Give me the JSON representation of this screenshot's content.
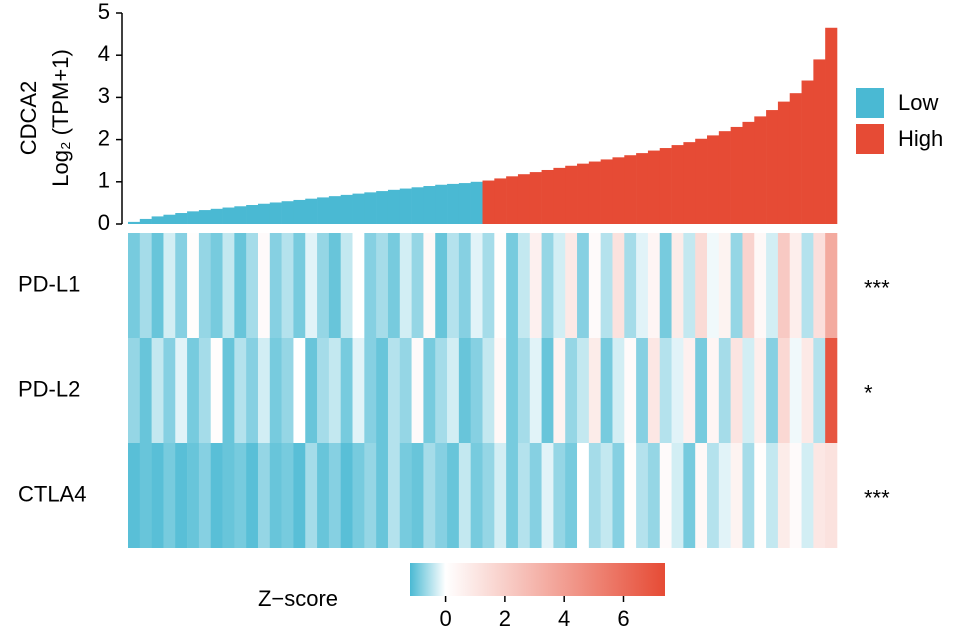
{
  "chart_data": {
    "type": "bar",
    "ylabel": [
      "CDCA2",
      "Log₂ (TPM+1)"
    ],
    "ylim": [
      0,
      5
    ],
    "yticks": [
      0,
      1,
      2,
      3,
      4,
      5
    ],
    "legend": "right",
    "series": [
      {
        "name": "Low",
        "color": "#4ab9d3",
        "values": [
          0.05,
          0.12,
          0.18,
          0.22,
          0.26,
          0.3,
          0.33,
          0.36,
          0.39,
          0.42,
          0.45,
          0.48,
          0.51,
          0.54,
          0.57,
          0.6,
          0.63,
          0.66,
          0.69,
          0.72,
          0.75,
          0.78,
          0.81,
          0.84,
          0.87,
          0.9,
          0.93,
          0.95,
          0.97,
          1.0
        ]
      },
      {
        "name": "High",
        "color": "#e64b35",
        "values": [
          1.03,
          1.08,
          1.13,
          1.18,
          1.23,
          1.28,
          1.33,
          1.38,
          1.43,
          1.48,
          1.53,
          1.58,
          1.63,
          1.68,
          1.74,
          1.8,
          1.87,
          1.94,
          2.02,
          2.1,
          2.2,
          2.3,
          2.42,
          2.55,
          2.7,
          2.9,
          3.1,
          3.4,
          3.9,
          4.65
        ]
      }
    ],
    "heatmap": {
      "rows": [
        "PD-L1",
        "PD-L2",
        "CTLA4"
      ],
      "significance": [
        "***",
        "*",
        "***"
      ],
      "values": [
        [
          -0.9,
          -0.6,
          -1.0,
          -0.3,
          -0.8,
          0.1,
          -0.7,
          -0.9,
          -0.4,
          -1.0,
          -0.6,
          0.2,
          -0.8,
          -0.5,
          -0.9,
          -0.2,
          -0.7,
          -1.0,
          -0.4,
          0.0,
          -0.8,
          -0.6,
          -0.9,
          -0.3,
          -0.7,
          0.3,
          -1.0,
          -0.5,
          -0.8,
          -0.2,
          -0.6,
          0.1,
          -0.9,
          -0.4,
          0.6,
          -0.7,
          -0.3,
          0.9,
          -0.8,
          0.2,
          -0.5,
          1.2,
          -0.6,
          -0.2,
          0.4,
          -0.9,
          0.8,
          -0.4,
          1.5,
          -0.1,
          0.5,
          -0.7,
          1.8,
          0.3,
          -0.3,
          2.2,
          0.7,
          -0.5,
          1.3,
          3.5
        ],
        [
          -0.7,
          -1.0,
          -0.4,
          -0.8,
          -0.2,
          -0.9,
          -0.6,
          0.1,
          -1.0,
          -0.5,
          -0.8,
          -0.3,
          -0.9,
          -0.7,
          0.0,
          -1.0,
          -0.6,
          -0.4,
          -0.9,
          -0.2,
          -0.8,
          -1.0,
          -0.5,
          -0.7,
          0.2,
          -0.9,
          -0.6,
          -0.3,
          -1.0,
          -0.8,
          -0.4,
          0.3,
          -0.9,
          -0.6,
          -0.2,
          -1.0,
          0.5,
          -0.7,
          -0.4,
          0.8,
          -0.9,
          -0.3,
          0.2,
          -0.8,
          1.0,
          -0.5,
          -0.2,
          0.6,
          -0.9,
          0.4,
          -0.6,
          1.1,
          -0.3,
          0.7,
          -0.8,
          1.6,
          -0.1,
          0.9,
          -0.5,
          7.0
        ],
        [
          -1.1,
          -1.0,
          -1.1,
          -0.9,
          -1.1,
          -1.0,
          -0.8,
          -1.1,
          -1.0,
          -0.9,
          -1.1,
          -0.7,
          -1.0,
          -0.9,
          -1.1,
          -0.6,
          -1.0,
          -0.8,
          -1.1,
          -0.9,
          -0.7,
          -1.0,
          -0.5,
          -0.9,
          -1.0,
          -0.6,
          -0.8,
          -1.0,
          -0.4,
          -0.9,
          -0.7,
          -0.3,
          -0.9,
          -0.5,
          -0.8,
          -0.2,
          -0.7,
          -0.9,
          0.0,
          -0.6,
          -0.4,
          -0.8,
          0.1,
          -0.5,
          -0.7,
          0.2,
          -0.3,
          -0.9,
          0.3,
          -0.5,
          -0.2,
          0.5,
          -0.6,
          0.1,
          -0.4,
          0.8,
          0.2,
          -0.3,
          1.0,
          1.2
        ]
      ]
    },
    "colorbar": {
      "title": "Z−score",
      "lim": [
        -1.2,
        7.4
      ],
      "midpoint": 0,
      "ticks": [
        0,
        2,
        4,
        6
      ],
      "colors": [
        "#4ab9d3",
        "#ffffff",
        "#e64b35"
      ]
    }
  }
}
